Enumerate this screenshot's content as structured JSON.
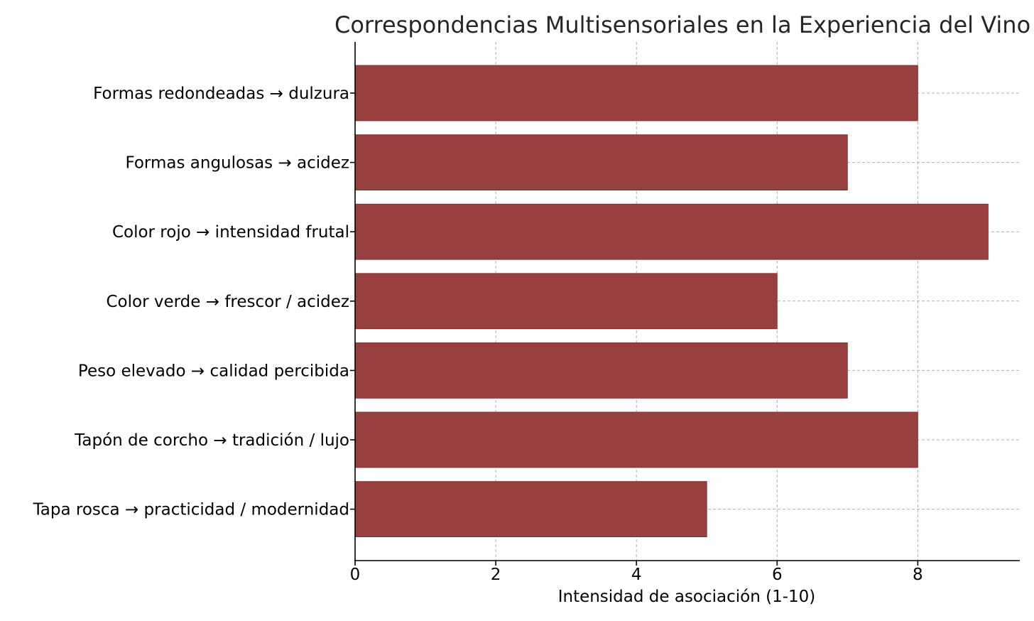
{
  "chart_data": {
    "type": "bar",
    "orientation": "horizontal",
    "title": "Correspondencias Multisensoriales en la Experiencia del Vino",
    "xlabel": "Intensidad de asociación (1-10)",
    "ylabel": "",
    "categories": [
      "Formas redondeadas → dulzura",
      "Formas angulosas → acidez",
      "Color rojo → intensidad frutal",
      "Color verde → frescor / acidez",
      "Peso elevado → calidad percibida",
      "Tapón de corcho → tradición / lujo",
      "Tapa rosca → practicidad / modernidad"
    ],
    "values": [
      8,
      7,
      9,
      6,
      7,
      8,
      5
    ],
    "xlim": [
      0,
      9.45
    ],
    "xticks": [
      0,
      2,
      4,
      6,
      8
    ],
    "grid": true,
    "bar_color": "#984040",
    "bar_edge_color": "#7a2a2a"
  }
}
